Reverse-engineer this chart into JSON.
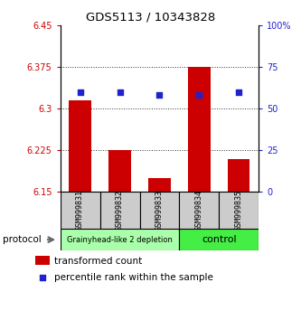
{
  "title": "GDS5113 / 10343828",
  "samples": [
    "GSM999831",
    "GSM999832",
    "GSM999833",
    "GSM999834",
    "GSM999835"
  ],
  "bar_values": [
    6.315,
    6.225,
    6.175,
    6.375,
    6.21
  ],
  "dot_values": [
    6.33,
    6.33,
    6.325,
    6.325,
    6.33
  ],
  "ylim_left": [
    6.15,
    6.45
  ],
  "yticks_left": [
    6.15,
    6.225,
    6.3,
    6.375,
    6.45
  ],
  "ytick_labels_left": [
    "6.15",
    "6.225",
    "6.3",
    "6.375",
    "6.45"
  ],
  "ylim_right": [
    0,
    100
  ],
  "yticks_right": [
    0,
    25,
    50,
    75,
    100
  ],
  "ytick_labels_right": [
    "0",
    "25",
    "50",
    "75",
    "100%"
  ],
  "bar_color": "#cc0000",
  "dot_color": "#2222cc",
  "bar_bottom": 6.15,
  "groups": [
    {
      "label": "Grainyhead-like 2 depletion",
      "indices": [
        0,
        1,
        2
      ],
      "color": "#aaffaa"
    },
    {
      "label": "control",
      "indices": [
        3,
        4
      ],
      "color": "#44ee44"
    }
  ],
  "protocol_label": "protocol",
  "legend_bar_label": "transformed count",
  "legend_dot_label": "percentile rank within the sample",
  "left_tick_color": "#cc0000",
  "right_tick_color": "#2222cc",
  "sample_box_color": "#cccccc",
  "grid_color": "#333333"
}
